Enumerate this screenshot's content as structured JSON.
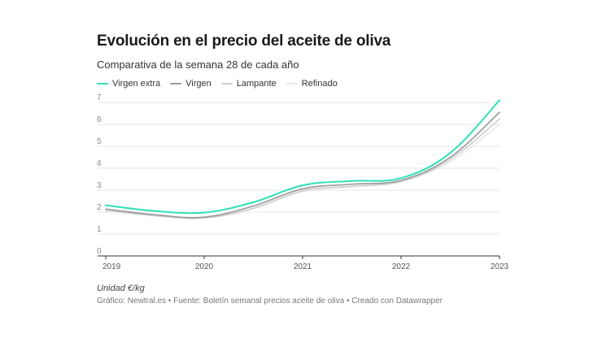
{
  "header": {
    "title": "Evolución en el precio del aceite de oliva",
    "subtitle": "Comparativa de la semana 28 de cada año"
  },
  "footer": {
    "unit": "Unidad €/kg",
    "source": "Gráfico: Newtral.es • Fuente: Boletín semanal precios aceite de oliva  • Creado con Datawrapper"
  },
  "chart_data": {
    "type": "line",
    "title": "Evolución en el precio del aceite de oliva",
    "subtitle": "Comparativa de la semana 28 de cada año",
    "x": [
      2019,
      2019.5,
      2020,
      2020.5,
      2021,
      2021.5,
      2022,
      2022.5,
      2023
    ],
    "x_ticks": [
      "2019",
      "2020",
      "2021",
      "2022",
      "2023"
    ],
    "y_ticks": [
      "0",
      "1",
      "2",
      "3",
      "4",
      "5",
      "6",
      "7"
    ],
    "ylim": [
      0,
      7.3
    ],
    "xlim": [
      2019,
      2023
    ],
    "grid": true,
    "legend_position": "top-left",
    "series": [
      {
        "name": "Virgen extra",
        "color": "#2fe0b8",
        "values": [
          2.31,
          2.05,
          1.98,
          2.45,
          3.22,
          3.42,
          3.55,
          4.7,
          7.1
        ]
      },
      {
        "name": "Virgen",
        "color": "#999999",
        "values": [
          2.14,
          1.88,
          1.77,
          2.28,
          3.06,
          3.27,
          3.45,
          4.5,
          6.55
        ]
      },
      {
        "name": "Lampante",
        "color": "#cfcfcf",
        "values": [
          2.08,
          1.84,
          1.73,
          2.18,
          2.97,
          3.18,
          3.4,
          4.4,
          6.25
        ]
      },
      {
        "name": "Refinado",
        "color": "#e8e8e8",
        "values": [
          2.06,
          1.82,
          1.72,
          2.15,
          2.93,
          3.15,
          3.38,
          4.3,
          6.0
        ]
      }
    ]
  }
}
